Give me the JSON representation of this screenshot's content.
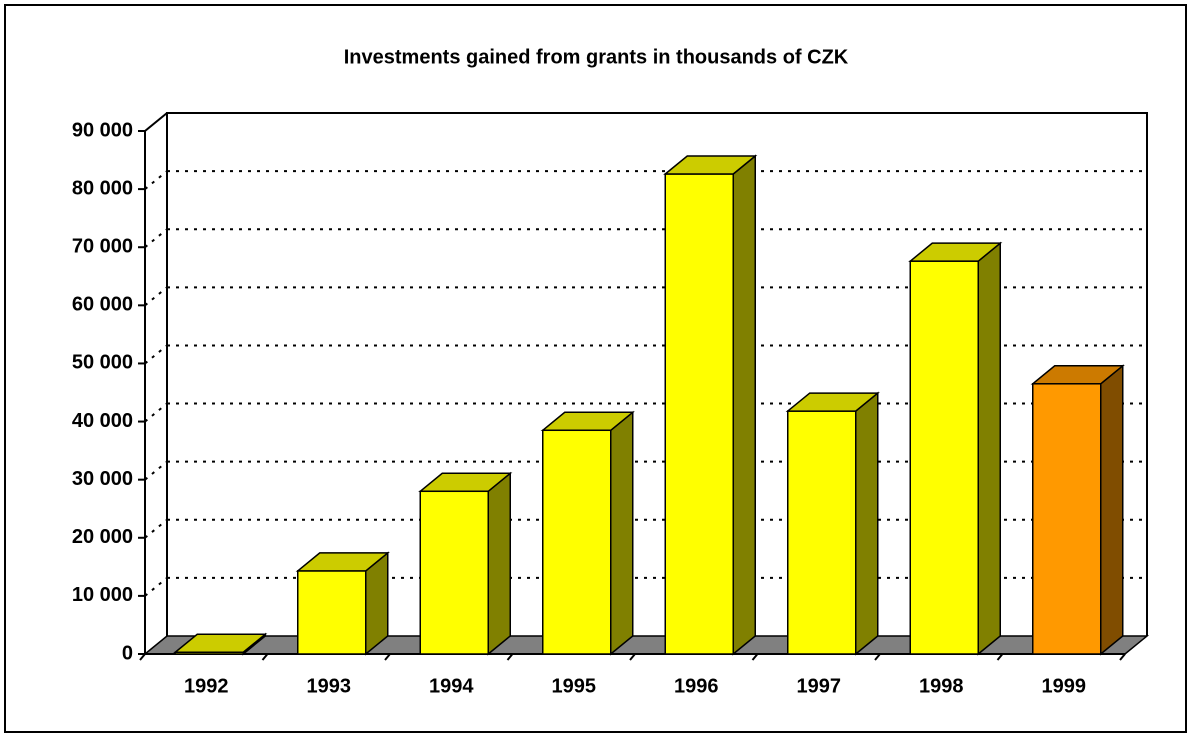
{
  "chart_data": {
    "type": "bar3d",
    "title": "Investments gained from grants in thousands of CZK",
    "categories": [
      "1992",
      "1993",
      "1994",
      "1995",
      "1996",
      "1997",
      "1998",
      "1999"
    ],
    "values": [
      300,
      14300,
      28000,
      38500,
      82600,
      41800,
      67600,
      46500
    ],
    "colors": [
      "#ffff00",
      "#ffff00",
      "#ffff00",
      "#ffff00",
      "#ffff00",
      "#ffff00",
      "#ffff00",
      "#ff9900"
    ],
    "ylim": [
      0,
      90000
    ],
    "yticks": [
      0,
      {
        "value": 10000,
        "label": "10 000"
      },
      {
        "value": 20000,
        "label": "20 000"
      },
      {
        "value": 30000,
        "label": "30 000"
      },
      {
        "value": 40000,
        "label": "40 000"
      },
      {
        "value": 50000,
        "label": "50 000"
      },
      {
        "value": 60000,
        "label": "60 000"
      },
      {
        "value": 70000,
        "label": "70 000"
      },
      {
        "value": 80000,
        "label": "80 000"
      },
      {
        "value": 90000,
        "label": "90 000"
      }
    ],
    "grid": true
  }
}
